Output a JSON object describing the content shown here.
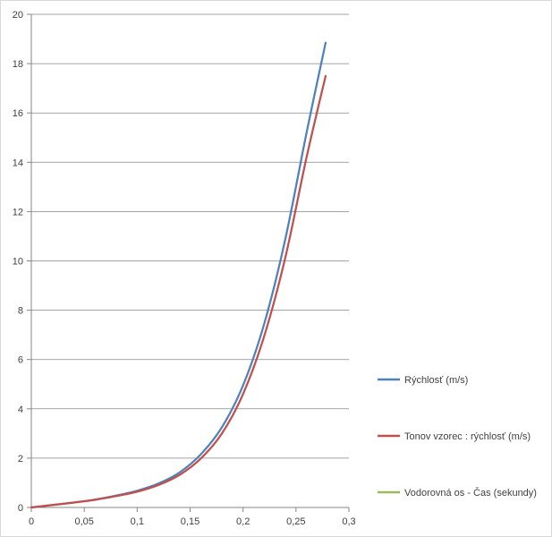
{
  "chart_data": {
    "type": "line",
    "title": "",
    "xlabel": "",
    "ylabel": "",
    "xlim": [
      0,
      0.3
    ],
    "ylim": [
      0,
      20
    ],
    "x_ticks": [
      0,
      0.05,
      0.1,
      0.15,
      0.2,
      0.25,
      0.3
    ],
    "x_tick_labels": [
      "0",
      "0,05",
      "0,1",
      "0,15",
      "0,2",
      "0,25",
      "0,3"
    ],
    "y_ticks": [
      0,
      2,
      4,
      6,
      8,
      10,
      12,
      14,
      16,
      18,
      20
    ],
    "y_tick_labels": [
      "0",
      "2",
      "4",
      "6",
      "8",
      "10",
      "12",
      "14",
      "16",
      "18",
      "20"
    ],
    "grid": "horizontal",
    "legend_position": "right",
    "series": [
      {
        "name": "Rýchlosť (m/s)",
        "color": "#4F81BD",
        "x": [
          0,
          0.02,
          0.04,
          0.06,
          0.08,
          0.1,
          0.12,
          0.14,
          0.16,
          0.18,
          0.2,
          0.22,
          0.24,
          0.26,
          0.278
        ],
        "y": [
          0,
          0.1,
          0.2,
          0.32,
          0.48,
          0.68,
          0.97,
          1.42,
          2.15,
          3.25,
          4.95,
          7.45,
          10.9,
          15.2,
          18.85
        ]
      },
      {
        "name": "Tonov vzorec : rýchlosť (m/s)",
        "color": "#C0504D",
        "x": [
          0,
          0.02,
          0.04,
          0.06,
          0.08,
          0.1,
          0.12,
          0.14,
          0.16,
          0.18,
          0.2,
          0.22,
          0.24,
          0.26,
          0.278
        ],
        "y": [
          0,
          0.1,
          0.2,
          0.31,
          0.46,
          0.64,
          0.91,
          1.32,
          1.98,
          3.0,
          4.6,
          6.95,
          10.15,
          14.2,
          17.5
        ]
      },
      {
        "name": "Vodorovná os - Čas (sekundy)",
        "color": "#9BBB59",
        "x": [],
        "y": []
      }
    ]
  }
}
